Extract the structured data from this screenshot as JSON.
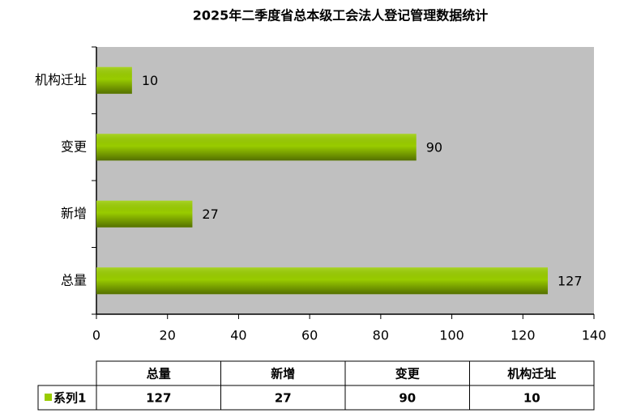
{
  "chart_data": {
    "type": "hbar",
    "title": "2025年二季度省总本级工会法人登记管理数据统计",
    "categories": [
      "总量",
      "新增",
      "变更",
      "机构迁址"
    ],
    "series": [
      {
        "name": "系列1",
        "color": "#99cc00",
        "values": [
          127,
          27,
          90,
          10
        ]
      }
    ],
    "xlim": [
      0,
      140
    ],
    "xticks": [
      0,
      20,
      40,
      60,
      80,
      100,
      120,
      140
    ],
    "plot_background": "#c0c0c0",
    "data_table": true
  }
}
